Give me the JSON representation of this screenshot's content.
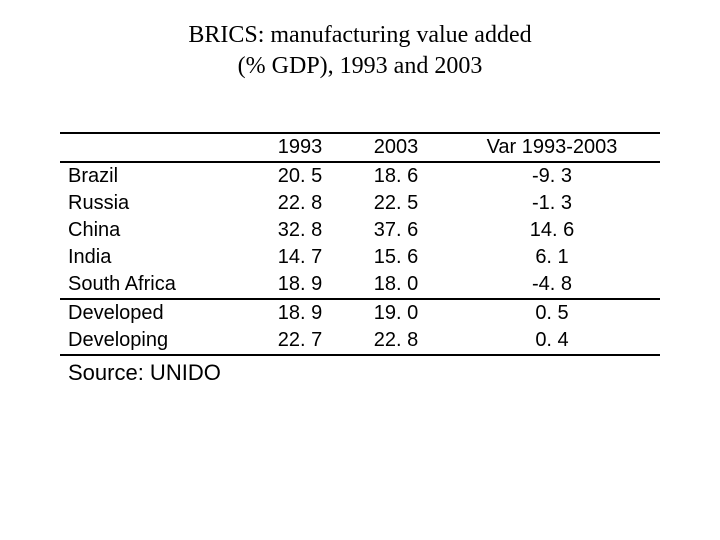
{
  "title_line1": "BRICS: manufacturing value added",
  "title_line2": "(% GDP), 1993 and 2003",
  "columns": {
    "year1": "1993",
    "year2": "2003",
    "var": "Var 1993-2003"
  },
  "rows": [
    {
      "label": "Brazil",
      "y1": "20. 5",
      "y2": "18. 6",
      "var": "-9. 3"
    },
    {
      "label": "Russia",
      "y1": "22. 8",
      "y2": "22. 5",
      "var": "-1. 3"
    },
    {
      "label": "China",
      "y1": "32. 8",
      "y2": "37. 6",
      "var": "14. 6"
    },
    {
      "label": "India",
      "y1": "14. 7",
      "y2": "15. 6",
      "var": "6. 1"
    },
    {
      "label": "South Africa",
      "y1": "18. 9",
      "y2": "18. 0",
      "var": "-4. 8"
    },
    {
      "label": "Developed",
      "y1": "18. 9",
      "y2": "19. 0",
      "var": "0. 5"
    },
    {
      "label": "Developing",
      "y1": "22. 7",
      "y2": "22. 8",
      "var": "0. 4"
    }
  ],
  "source": "Source: UNIDO",
  "style": {
    "type": "table",
    "background_color": "#ffffff",
    "text_color": "#000000",
    "rule_color": "#000000",
    "title_font": "Times New Roman",
    "title_fontsize": 24,
    "body_font": "Verdana",
    "body_fontsize": 20,
    "source_fontsize": 22,
    "section_breaks_after_index": [
      4,
      6
    ],
    "col_widths_pct": [
      32,
      16,
      16,
      36
    ],
    "cell_align": {
      "label": "left",
      "y1": "center",
      "y2": "center",
      "var": "center"
    }
  }
}
